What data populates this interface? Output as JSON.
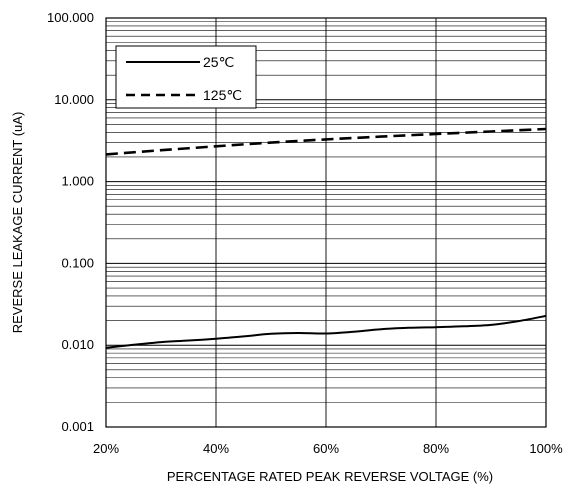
{
  "chart_data": {
    "type": "line",
    "xlabel": "PERCENTAGE RATED PEAK REVERSE VOLTAGE (%)",
    "ylabel": "REVERSE LEAKAGE CURRENT (uA)",
    "x_scale": "linear",
    "y_scale": "log",
    "xlim": [
      20,
      100
    ],
    "ylim": [
      0.001,
      100
    ],
    "x_ticks": [
      20,
      40,
      60,
      80,
      100
    ],
    "x_tick_labels": [
      "20%",
      "40%",
      "60%",
      "80%",
      "100%"
    ],
    "y_ticks": [
      0.001,
      0.01,
      0.1,
      1,
      10,
      100
    ],
    "y_tick_labels": [
      "0.001",
      "0.010",
      "0.100",
      "1.000",
      "10.000",
      "100.000"
    ],
    "grid": true,
    "legend_position": "top-left",
    "series": [
      {
        "name": "25℃",
        "line_style": "solid",
        "color": "#000000",
        "x": [
          20,
          25,
          30,
          35,
          40,
          45,
          50,
          55,
          60,
          65,
          70,
          75,
          80,
          85,
          90,
          95,
          100
        ],
        "y": [
          0.0093,
          0.0101,
          0.0109,
          0.0114,
          0.012,
          0.0128,
          0.0138,
          0.0141,
          0.0139,
          0.0146,
          0.0157,
          0.0163,
          0.0166,
          0.017,
          0.0177,
          0.0197,
          0.0228
        ]
      },
      {
        "name": "125℃",
        "line_style": "dashed",
        "color": "#000000",
        "x": [
          20,
          30,
          40,
          50,
          60,
          70,
          80,
          90,
          100
        ],
        "y": [
          2.15,
          2.42,
          2.7,
          3.0,
          3.28,
          3.55,
          3.82,
          4.1,
          4.4
        ]
      }
    ]
  }
}
